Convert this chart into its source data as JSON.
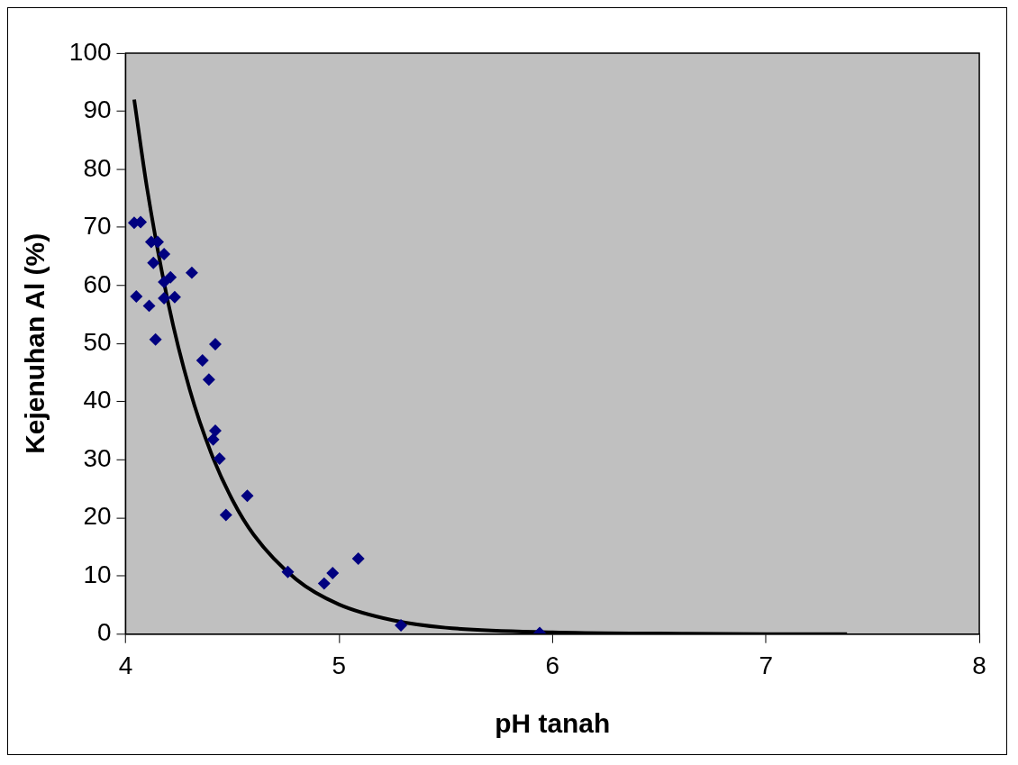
{
  "chart_data": {
    "type": "scatter",
    "xlabel": "pH tanah",
    "ylabel": "Kejenuhan Al (%)",
    "xlim": [
      4,
      8
    ],
    "xticks": [
      4,
      5,
      6,
      7,
      8
    ],
    "ylim": [
      0,
      100
    ],
    "yticks": [
      0,
      10,
      20,
      30,
      40,
      50,
      60,
      70,
      80,
      90,
      100
    ],
    "grid": false,
    "legend": false,
    "marker": "diamond",
    "series": [
      {
        "color": "#000080",
        "x": [
          4.04,
          4.07,
          4.12,
          4.15,
          4.13,
          4.18,
          4.05,
          4.11,
          4.14,
          4.18,
          4.21,
          4.18,
          4.23,
          4.31,
          4.36,
          4.42,
          4.39,
          4.42,
          4.41,
          4.44,
          4.47,
          4.57,
          4.76,
          4.93,
          4.97,
          5.09,
          5.29,
          5.94
        ],
        "values": [
          70.8,
          70.9,
          67.5,
          67.5,
          63.9,
          65.4,
          58.1,
          56.5,
          50.7,
          60.6,
          61.4,
          57.8,
          58.0,
          62.2,
          47.1,
          49.9,
          43.8,
          35.0,
          33.5,
          30.2,
          20.5,
          23.8,
          10.7,
          8.7,
          10.5,
          13.0,
          1.5,
          0.2
        ]
      },
      {
        "type": "line",
        "color": "#000000",
        "marker": "none",
        "x": [
          4.04,
          4.1,
          4.2,
          4.3,
          4.4,
          4.5,
          4.6,
          4.8,
          5.0,
          5.25,
          5.5,
          6.0,
          6.5,
          7.0,
          7.38
        ],
        "values": [
          92,
          76.8,
          56.9,
          42.1,
          31.2,
          23.1,
          17.1,
          9.4,
          5.1,
          2.4,
          1.1,
          0.3,
          0.1,
          0,
          0
        ]
      }
    ]
  }
}
